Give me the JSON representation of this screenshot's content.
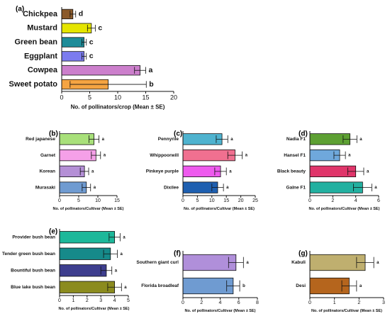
{
  "chart_data": [
    {
      "panel": "(a)",
      "type": "bar",
      "orientation": "horizontal",
      "categories": [
        "Chickpea",
        "Mustard",
        "Green bean",
        "Eggplant",
        "Cowpea",
        "Sweet potato"
      ],
      "values": [
        2,
        5.3,
        4,
        4,
        14,
        8.3
      ],
      "errors": [
        0.5,
        0.7,
        0.4,
        0.4,
        1.0,
        6.8
      ],
      "significance": [
        "d",
        "c",
        "c",
        "c",
        "a",
        "b"
      ],
      "colors": [
        "#8B5A2B",
        "#E5E500",
        "#1E8C99",
        "#7B7BEF",
        "#CC7FCC",
        "#F5A442"
      ],
      "xlabel": "No. of pollinators/crop (Mean ± SE)",
      "xlim": [
        0,
        20
      ],
      "xticks": [
        0,
        5,
        10,
        15,
        20
      ]
    },
    {
      "panel": "(b)",
      "type": "bar",
      "orientation": "horizontal",
      "categories": [
        "Red japanese",
        "Garnet",
        "Korean",
        "Murasaki"
      ],
      "values": [
        9,
        9.5,
        6.5,
        7
      ],
      "errors": [
        1.3,
        1.2,
        1.1,
        1.1
      ],
      "significance": [
        "a",
        "a",
        "a",
        "a"
      ],
      "colors": [
        "#A8E07A",
        "#F5A0E8",
        "#B48FD6",
        "#6F9BD1"
      ],
      "xlabel": "No. of pollinators/Cultivar (Mean ± SE)",
      "xlim": [
        0,
        15
      ],
      "xticks": [
        0,
        5,
        10,
        15
      ]
    },
    {
      "panel": "(c)",
      "type": "bar",
      "orientation": "horizontal",
      "categories": [
        "Pennyrile",
        "Whippoorwill",
        "Pinkeye purple",
        "Dixilee"
      ],
      "values": [
        13.5,
        18,
        13,
        12
      ],
      "errors": [
        2,
        2.5,
        2,
        2
      ],
      "significance": [
        "a",
        "a",
        "a",
        "a"
      ],
      "colors": [
        "#4FB3CF",
        "#F07090",
        "#EE5AEE",
        "#1E5FB0"
      ],
      "xlabel": "No. of pollinators/Cultivar (Mean ± SE)",
      "xlim": [
        0,
        25
      ],
      "xticks": [
        0,
        5,
        10,
        15,
        20,
        25
      ]
    },
    {
      "panel": "(d)",
      "type": "bar",
      "orientation": "horizontal",
      "categories": [
        "Nadia F1",
        "Hansel F1",
        "Black beauty",
        "Galne F1"
      ],
      "values": [
        3.5,
        2.6,
        4,
        4.6
      ],
      "errors": [
        0.6,
        0.5,
        0.7,
        0.8
      ],
      "significance": [
        "a",
        "a",
        "a",
        "a"
      ],
      "colors": [
        "#5DA033",
        "#6FA8DC",
        "#E0356A",
        "#22B0A0"
      ],
      "xlabel": "No. of pollinators/Cultivar (Mean ± SE)",
      "xlim": [
        0,
        6
      ],
      "xticks": [
        0,
        2,
        4,
        6
      ]
    },
    {
      "panel": "(e)",
      "type": "bar",
      "orientation": "horizontal",
      "categories": [
        "Provider bush bean",
        "Tender green bush bean",
        "Bountiful bush bean",
        "Blue lake bush bean"
      ],
      "values": [
        4,
        3.7,
        3.4,
        4
      ],
      "errors": [
        0.4,
        0.5,
        0.4,
        0.5
      ],
      "significance": [
        "a",
        "a",
        "a",
        "a"
      ],
      "colors": [
        "#1DB89A",
        "#168A8A",
        "#3E3E8E",
        "#8B8B1E"
      ],
      "xlabel": "No. of pollinators/Cultivar (Mean ± SE)",
      "xlim": [
        0,
        5
      ],
      "xticks": [
        0,
        1,
        2,
        3,
        4,
        5
      ]
    },
    {
      "panel": "(f)",
      "type": "bar",
      "orientation": "horizontal",
      "categories": [
        "Southern giant curl",
        "Florida broadleaf"
      ],
      "values": [
        5.7,
        5.4
      ],
      "errors": [
        0.8,
        0.7
      ],
      "significance": [
        "a",
        "b"
      ],
      "colors": [
        "#B08FDA",
        "#6F9BD1"
      ],
      "xlabel": "No. of pollinators/Cultivar (Mean ± SE)",
      "xlim": [
        0,
        8
      ],
      "xticks": [
        0,
        2,
        4,
        6,
        8
      ]
    },
    {
      "panel": "(g)",
      "type": "bar",
      "orientation": "horizontal",
      "categories": [
        "Kabuli",
        "Desi"
      ],
      "values": [
        2.25,
        1.6
      ],
      "errors": [
        0.35,
        0.3
      ],
      "significance": [
        "a",
        "a"
      ],
      "colors": [
        "#BFAF6F",
        "#B5651D"
      ],
      "xlabel": "No. of pollinators/Cultivar (Mean ± SE)",
      "xlim": [
        0,
        3
      ],
      "xticks": [
        0,
        1,
        2,
        3
      ]
    }
  ]
}
